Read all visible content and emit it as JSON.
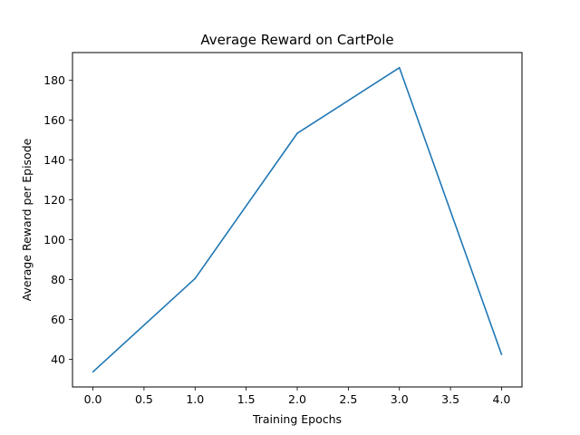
{
  "chart_data": {
    "type": "line",
    "title": "Average Reward on CartPole",
    "xlabel": "Training Epochs",
    "ylabel": "Average Reward per Episode",
    "x": [
      0,
      1,
      2,
      3,
      4
    ],
    "series": [
      {
        "values": [
          33.8,
          80.6,
          153.4,
          186.3,
          42.5
        ],
        "color": "#1f77b4"
      }
    ],
    "xlim": [
      -0.2,
      4.2
    ],
    "ylim": [
      26.2,
      193.9
    ],
    "xticks": [
      0.0,
      0.5,
      1.0,
      1.5,
      2.0,
      2.5,
      3.0,
      3.5,
      4.0
    ],
    "xtick_labels": [
      "0.0",
      "0.5",
      "1.0",
      "1.5",
      "2.0",
      "2.5",
      "3.0",
      "3.5",
      "4.0"
    ],
    "yticks": [
      40,
      60,
      80,
      100,
      120,
      140,
      160,
      180
    ],
    "ytick_labels": [
      "40",
      "60",
      "80",
      "100",
      "120",
      "140",
      "160",
      "180"
    ],
    "grid": false,
    "legend": "none"
  }
}
